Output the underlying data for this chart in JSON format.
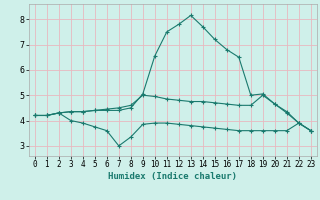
{
  "xlabel": "Humidex (Indice chaleur)",
  "bg_color": "#cff0ea",
  "grid_color": "#e8b8c0",
  "line_color": "#1a7a6e",
  "xlim": [
    -0.5,
    23.5
  ],
  "ylim": [
    2.6,
    8.6
  ],
  "xticks": [
    0,
    1,
    2,
    3,
    4,
    5,
    6,
    7,
    8,
    9,
    10,
    11,
    12,
    13,
    14,
    15,
    16,
    17,
    18,
    19,
    20,
    21,
    22,
    23
  ],
  "yticks": [
    3,
    4,
    5,
    6,
    7,
    8
  ],
  "line1_x": [
    0,
    1,
    2,
    3,
    4,
    5,
    6,
    7,
    8,
    9,
    10,
    11,
    12,
    13,
    14,
    15,
    16,
    17,
    18,
    19,
    20,
    21,
    22,
    23
  ],
  "line1_y": [
    4.2,
    4.2,
    4.3,
    4.35,
    4.35,
    4.4,
    4.45,
    4.5,
    4.6,
    5.0,
    4.95,
    4.85,
    4.8,
    4.75,
    4.75,
    4.7,
    4.65,
    4.6,
    4.6,
    5.0,
    4.65,
    4.35,
    3.9,
    3.6
  ],
  "line2_x": [
    0,
    1,
    2,
    3,
    4,
    5,
    6,
    7,
    8,
    9,
    10,
    11,
    12,
    13,
    14,
    15,
    16,
    17,
    18,
    19,
    20,
    21,
    22,
    23
  ],
  "line2_y": [
    4.2,
    4.2,
    4.3,
    4.0,
    3.9,
    3.75,
    3.6,
    3.0,
    3.35,
    3.85,
    3.9,
    3.9,
    3.85,
    3.8,
    3.75,
    3.7,
    3.65,
    3.6,
    3.6,
    3.6,
    3.6,
    3.6,
    3.9,
    3.6
  ],
  "line3_x": [
    0,
    1,
    2,
    3,
    4,
    5,
    6,
    7,
    8,
    9,
    10,
    11,
    12,
    13,
    14,
    15,
    16,
    17,
    18,
    19,
    20,
    21,
    22,
    23
  ],
  "line3_y": [
    4.2,
    4.2,
    4.3,
    4.35,
    4.35,
    4.4,
    4.4,
    4.4,
    4.5,
    5.05,
    6.55,
    7.5,
    7.8,
    8.15,
    7.7,
    7.2,
    6.8,
    6.5,
    5.0,
    5.05,
    4.65,
    4.3,
    3.9,
    3.6
  ]
}
